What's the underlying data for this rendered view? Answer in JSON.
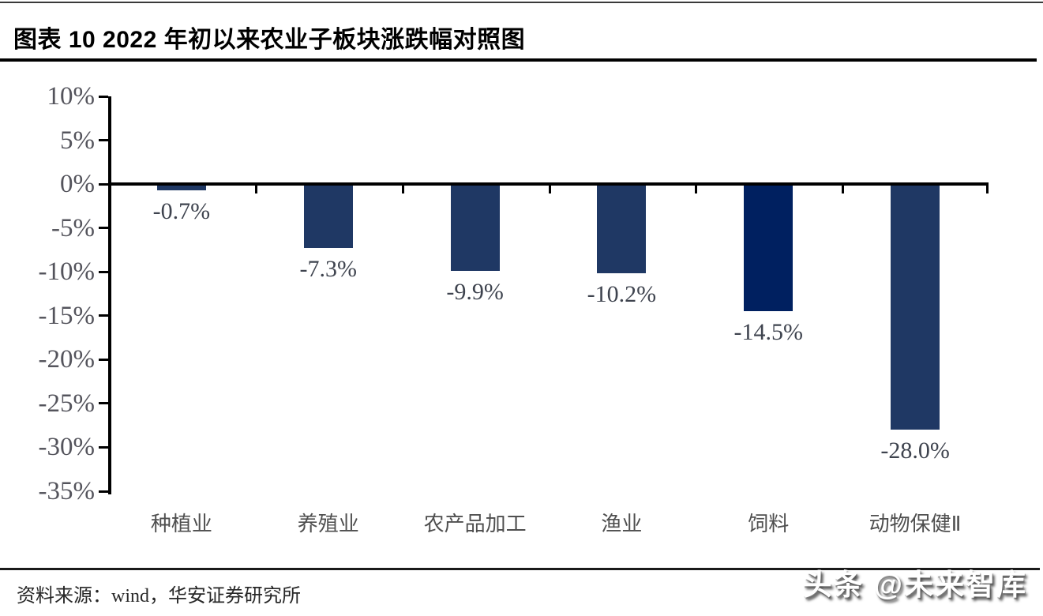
{
  "page": {
    "title": "图表 10 2022 年初以来农业子板块涨跌幅对照图",
    "source": "资料来源：wind，华安证券研究所",
    "watermark": "头条 @未来智库"
  },
  "colors": {
    "bar": "#1f3864",
    "bar_highlight": "#002060",
    "axis": "#000000",
    "value_label": "#3e434e",
    "ytick_label": "#54545c",
    "category_label": "#4f4f4f"
  },
  "chart_data": {
    "type": "bar",
    "title": "图表 10 2022 年初以来农业子板块涨跌幅对照图",
    "categories": [
      "种植业",
      "养殖业",
      "农产品加工",
      "渔业",
      "饲料",
      "动物保健Ⅱ"
    ],
    "values": [
      -0.7,
      -7.3,
      -9.9,
      -10.2,
      -14.5,
      -28.0
    ],
    "labels": [
      "-0.7%",
      "-7.3%",
      "-9.9%",
      "-10.2%",
      "-14.5%",
      "-28.0%"
    ],
    "highlight_index": 4,
    "xlabel": "",
    "ylabel": "",
    "ylim": [
      -35,
      10
    ],
    "ytick_step": 5,
    "yticks": [
      "10%",
      "5%",
      "0%",
      "-5%",
      "-10%",
      "-15%",
      "-20%",
      "-25%",
      "-30%",
      "-35%"
    ],
    "grid": false,
    "legend": null,
    "unit": "percent"
  }
}
